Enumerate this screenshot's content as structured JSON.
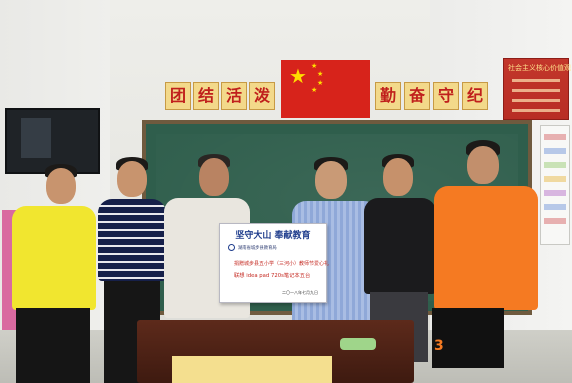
{
  "banner": {
    "left_chars": [
      "团",
      "结",
      "活",
      "泼"
    ],
    "right_chars": [
      "勤",
      "奋",
      "守",
      "纪"
    ]
  },
  "poster": {
    "title": "社会主义核心价值观"
  },
  "certificate": {
    "title": "坚守大山 奉献教育",
    "school": "湖南省城步县教育局",
    "line2": "捐赠城步县五小学（三河小）教师节爱心礼",
    "line3": "联想 idea pad 720s笔记本五台",
    "date": "二〇一八年七月九日"
  },
  "jersey_number": "3",
  "colors": {
    "flag_red": "#d7231b",
    "star_yellow": "#ffde00",
    "chalkboard": "#2f5e4c",
    "banner_gold": "#f3d98a",
    "banner_text": "#c0201c",
    "yellow_shirt": "#f1e62f",
    "orange_shirt": "#f57a22"
  }
}
